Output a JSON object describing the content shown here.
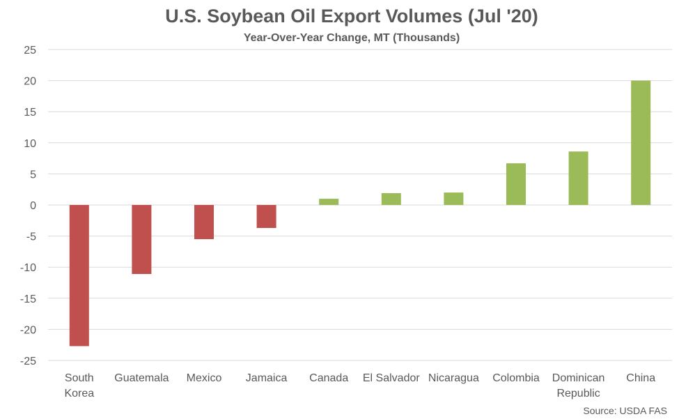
{
  "chart_data": {
    "type": "bar",
    "title": "U.S. Soybean Oil Export Volumes (Jul '20)",
    "subtitle": "Year-Over-Year Change, MT (Thousands)",
    "source": "Source: USDA FAS",
    "categories": [
      [
        "South",
        "Korea"
      ],
      [
        "Guatemala"
      ],
      [
        "Mexico"
      ],
      [
        "Jamaica"
      ],
      [
        "Canada"
      ],
      [
        "El Salvador"
      ],
      [
        "Nicaragua"
      ],
      [
        "Colombia"
      ],
      [
        "Dominican",
        "Republic"
      ],
      [
        "China"
      ]
    ],
    "values": [
      -22.7,
      -11.1,
      -5.5,
      -3.7,
      1.0,
      1.9,
      2.0,
      6.7,
      8.6,
      20.0
    ],
    "ylim": [
      -25,
      25
    ],
    "yticks": [
      25,
      20,
      15,
      10,
      5,
      0,
      -5,
      -10,
      -15,
      -20,
      -25
    ],
    "grid": true,
    "legend": "none",
    "colors": {
      "negative": "#c0504d",
      "positive": "#9bbb59"
    }
  }
}
